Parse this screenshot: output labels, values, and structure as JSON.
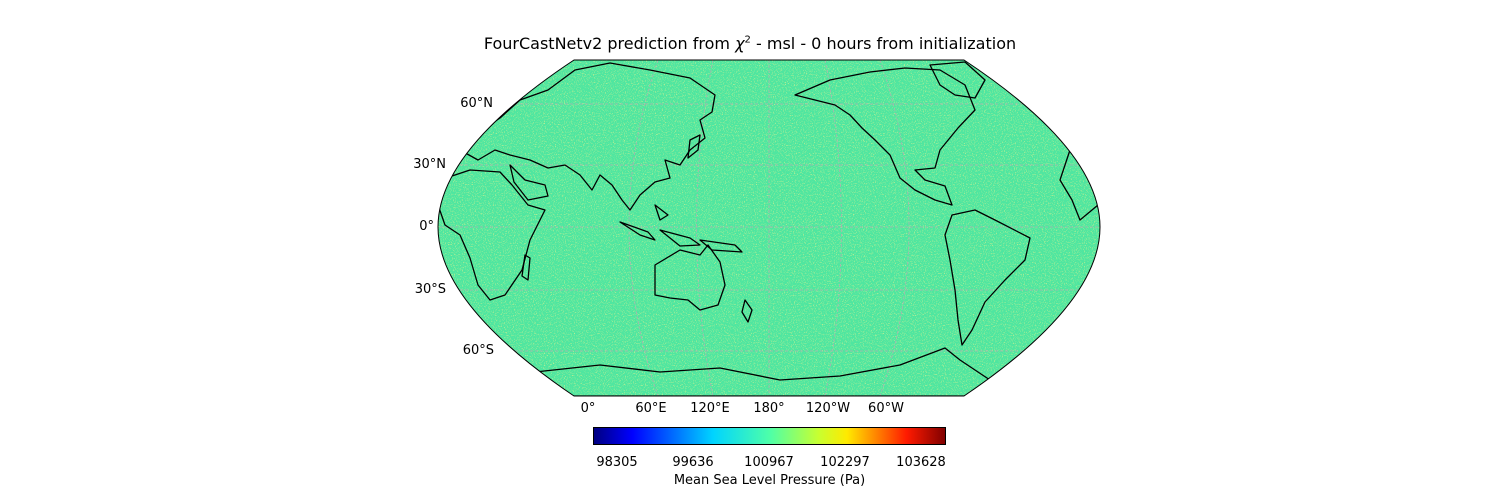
{
  "figure": {
    "title_main": "FourCastNetv2 prediction from ",
    "title_symbol": "χ",
    "title_sup": "2",
    "title_rest": " - msl - 0 hours from initialization"
  },
  "map": {
    "projection": "robinson",
    "central_longitude": 180,
    "field_fill_color": "#4fe6a0",
    "coastline_color": "#000000",
    "gridline_color": "#b0b0b0",
    "lat_labels": [
      "60°N",
      "30°N",
      "0°",
      "30°S",
      "60°S"
    ],
    "lon_labels": [
      "0°",
      "60°E",
      "120°E",
      "180°",
      "120°W",
      "60°W"
    ]
  },
  "colorbar": {
    "colormap": "jet",
    "label": "Mean Sea Level Pressure (Pa)",
    "ticks": [
      "98305",
      "99636",
      "100967",
      "102297",
      "103628"
    ],
    "min": 98305,
    "max": 103628
  }
}
